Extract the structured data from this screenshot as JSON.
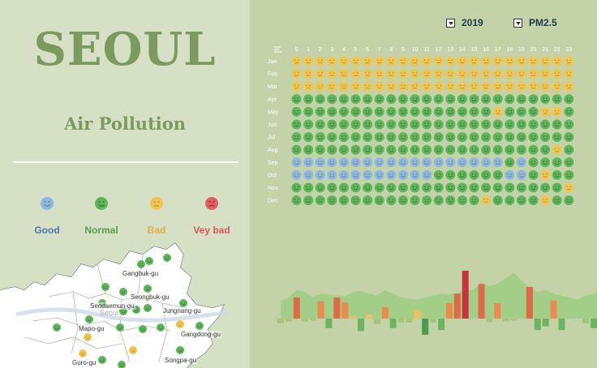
{
  "city_title": "SEOUL",
  "subtitle": "Air Pollution",
  "legend": [
    {
      "label": "Good",
      "icon": "good-face-icon",
      "color": "#4a78b0",
      "face": "#8fb8de"
    },
    {
      "label": "Normal",
      "icon": "normal-face-icon",
      "color": "#54a044",
      "face": "#5fb65a"
    },
    {
      "label": "Bad",
      "icon": "bad-face-icon",
      "color": "#e0b040",
      "face": "#f0c550"
    },
    {
      "label": "Vey bad",
      "icon": "very-bad-face-icon",
      "color": "#e05555",
      "face": "#e36060"
    }
  ],
  "filters": {
    "year": "2019",
    "pollutant": "PM2.5"
  },
  "heatmap": {
    "hours": [
      "0",
      "1",
      "2",
      "3",
      "4",
      "5",
      "6",
      "7",
      "8",
      "9",
      "10",
      "11",
      "12",
      "13",
      "14",
      "15",
      "16",
      "17",
      "18",
      "19",
      "20",
      "21",
      "22",
      "23"
    ],
    "months": [
      "Jan",
      "Feb",
      "Mar",
      "Apr",
      "May",
      "Jun",
      "Jul",
      "Aug",
      "Sep",
      "Oct",
      "Nov",
      "Dec"
    ],
    "levels": [
      "BBBBBBBBBBBBBBBBBBBBBBBB",
      "BBBBBBBBBBBBBBBBBBBBBBBB",
      "BBBBBBBBBBBBBBBBBBBBBBBB",
      "NNNNNNNNNNNNNNNNNNNNNNNN",
      "NNNNNNNNNNNNNNNNNBNNNBBN",
      "NNNNNNNNNNNNNNNNNNNNNNNN",
      "NNNNNNNNNNNNNNNNNNNNNNNN",
      "NNNNNNNNNNNNNNNNNNNNNNBN",
      "GGGGGGGGGGGGGGGGGGNGNNNN",
      "GGGGGGGGGGGGNNNNNNGGNBNN",
      "NNNNNNNNNNNNNNNNNNNNNNNB",
      "NNNNNNNNNNNNNNNNBNNNNBNN"
    ]
  },
  "districts": [
    "Gangbuk-gu",
    "Seongbuk-gu",
    "Seodaemun-gu",
    "Seoul",
    "Jungnang-gu",
    "Mapo-gu",
    "Gangdong-gu",
    "Songpa-gu",
    "Guro-gu"
  ],
  "chart_data": {
    "type": "bar",
    "area": [
      18,
      22,
      30,
      28,
      22,
      26,
      25,
      24,
      23,
      28,
      29,
      26,
      24,
      30,
      26,
      22,
      21,
      20,
      22,
      24,
      26,
      25,
      27,
      29,
      30,
      38,
      34,
      36,
      42,
      48,
      40,
      32,
      28,
      30,
      26,
      24,
      22,
      20,
      24,
      26,
      30,
      34,
      28,
      22
    ],
    "bars": [
      -5,
      -3,
      22,
      -3,
      -2,
      18,
      -10,
      22,
      17,
      3,
      -13,
      4,
      -6,
      12,
      -10,
      -4,
      -4,
      9,
      -17,
      -4,
      -12,
      16,
      26,
      50,
      0,
      36,
      -4,
      16,
      -3,
      -2,
      0,
      33,
      -12,
      -8,
      19,
      -12,
      0,
      0,
      -5,
      -10,
      20,
      15,
      0,
      0
    ],
    "ylim": [
      -40,
      55
    ]
  }
}
